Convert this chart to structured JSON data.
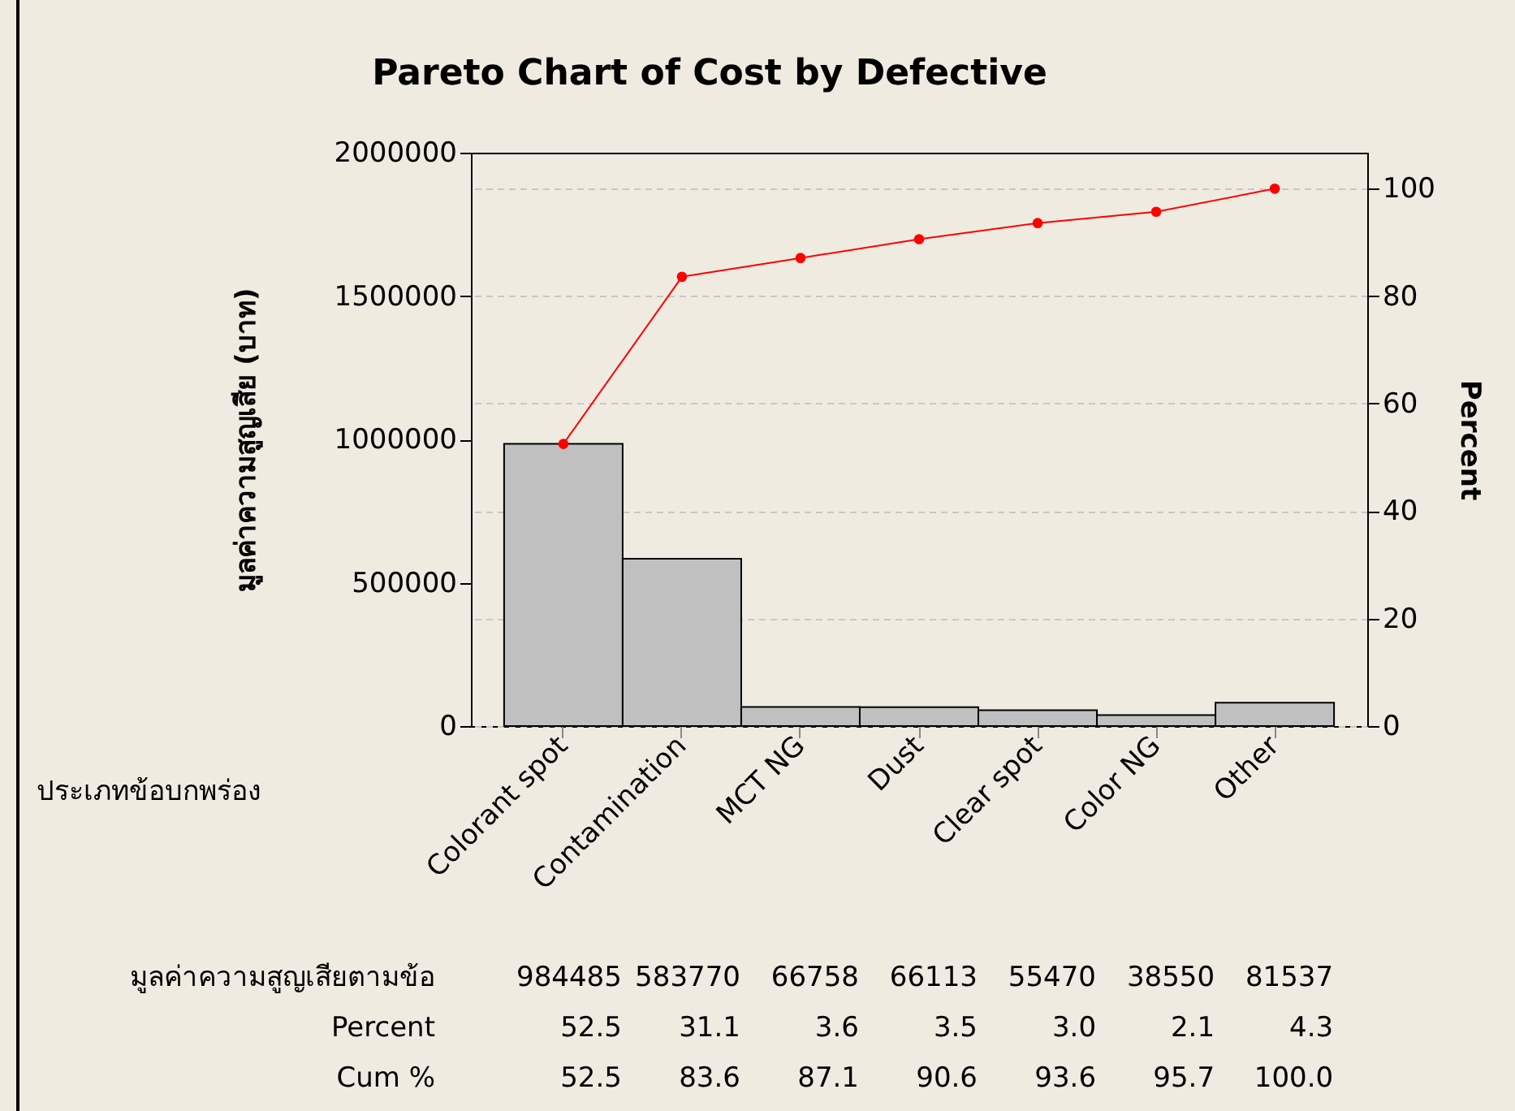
{
  "chart_data": {
    "type": "bar",
    "title": "Pareto Chart of Cost by Defective",
    "xlabel": "ประเภทข้อบกพร่อง",
    "ylabel": "มูลค่าความสูญเสีย (บาท)",
    "y2label": "Percent",
    "categories": [
      "Colorant spot",
      "Contamination",
      "MCT NG",
      "Dust",
      "Clear spot",
      "Color NG",
      "Other"
    ],
    "series": [
      {
        "color": "#c0c0c0",
        "values": [
          984485,
          583770,
          66758,
          66113,
          55470,
          38550,
          81537
        ],
        "value_labels": [
          "984485",
          "583770",
          "66758",
          "66113",
          "55470",
          "38550",
          "81537"
        ]
      },
      {
        "type": "line",
        "axis": "y2",
        "color": "#ff0000",
        "marker": "circle",
        "values": [
          52.5,
          83.6,
          87.1,
          90.6,
          93.6,
          95.7,
          100.0
        ],
        "value_labels": [
          "52.5",
          "83.6",
          "87.1",
          "90.6",
          "93.6",
          "95.7",
          "100.0"
        ]
      }
    ],
    "annotations": [
      "มูลค่าความสูญเสียตามข้อ",
      "Percent",
      "Cum %",
      "52.5",
      "31.1",
      "3.6",
      "3.5",
      "3.0",
      "2.1",
      "4.3"
    ],
    "ylim": [
      0,
      2000000
    ],
    "yticks": [
      0,
      500000,
      1000000,
      1500000,
      2000000
    ],
    "y2lim": [
      0,
      106.7
    ],
    "y2ticks": [
      0,
      20,
      40,
      60,
      80,
      100
    ],
    "grid": true
  }
}
